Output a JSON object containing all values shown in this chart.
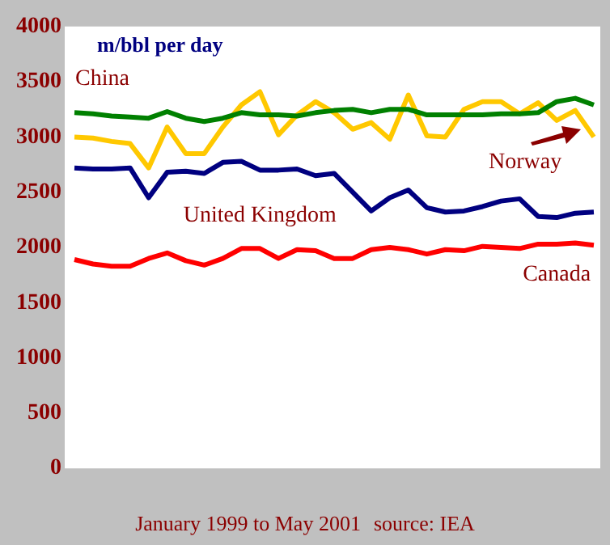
{
  "chart_data": {
    "type": "line",
    "ylabel": "m/bbl per day",
    "xlabel": "January 1999 to May 2001",
    "annotations": [
      "source: IEA"
    ],
    "categories": [
      null,
      null,
      null,
      null,
      null,
      null,
      null,
      null,
      null,
      null,
      null,
      null,
      null,
      null,
      null,
      null,
      null,
      null,
      null,
      null,
      null,
      null,
      null,
      null,
      null,
      null,
      null,
      null,
      null
    ],
    "ylim": [
      0,
      4000
    ],
    "yticks": [
      0,
      500,
      1000,
      1500,
      2000,
      2500,
      3000,
      3500,
      4000
    ],
    "grid": false,
    "legend": false,
    "marker": "none",
    "line_style": "solid",
    "series": [
      {
        "name": "China",
        "color": "#008000",
        "values": [
          3220,
          3210,
          3190,
          3180,
          3170,
          3230,
          3170,
          3140,
          3170,
          3220,
          3200,
          3200,
          3190,
          3220,
          3240,
          3250,
          3220,
          3250,
          3250,
          3200,
          3200,
          3200,
          3200,
          3210,
          3210,
          3220,
          3320,
          3350,
          3290
        ]
      },
      {
        "name": "Norway",
        "color": "#ffc800",
        "values": [
          3000,
          2990,
          2960,
          2940,
          2720,
          3090,
          2850,
          2850,
          3090,
          3290,
          3410,
          3020,
          3200,
          3320,
          3220,
          3070,
          3130,
          2980,
          3380,
          3010,
          3000,
          3250,
          3320,
          3320,
          3210,
          3310,
          3150,
          3240,
          3000
        ]
      },
      {
        "name": "United Kingdom",
        "color": "#000080",
        "values": [
          2720,
          2710,
          2710,
          2720,
          2450,
          2680,
          2690,
          2670,
          2770,
          2780,
          2700,
          2700,
          2710,
          2650,
          2670,
          2500,
          2330,
          2450,
          2520,
          2360,
          2320,
          2330,
          2370,
          2420,
          2440,
          2280,
          2270,
          2310,
          2320
        ]
      },
      {
        "name": "Canada",
        "color": "#ff0000",
        "values": [
          1890,
          1850,
          1830,
          1830,
          1900,
          1950,
          1880,
          1840,
          1900,
          1990,
          1990,
          1900,
          1980,
          1970,
          1900,
          1900,
          1980,
          2000,
          1980,
          1940,
          1980,
          1970,
          2010,
          2000,
          1990,
          2030,
          2030,
          2040,
          2020
        ]
      }
    ]
  }
}
